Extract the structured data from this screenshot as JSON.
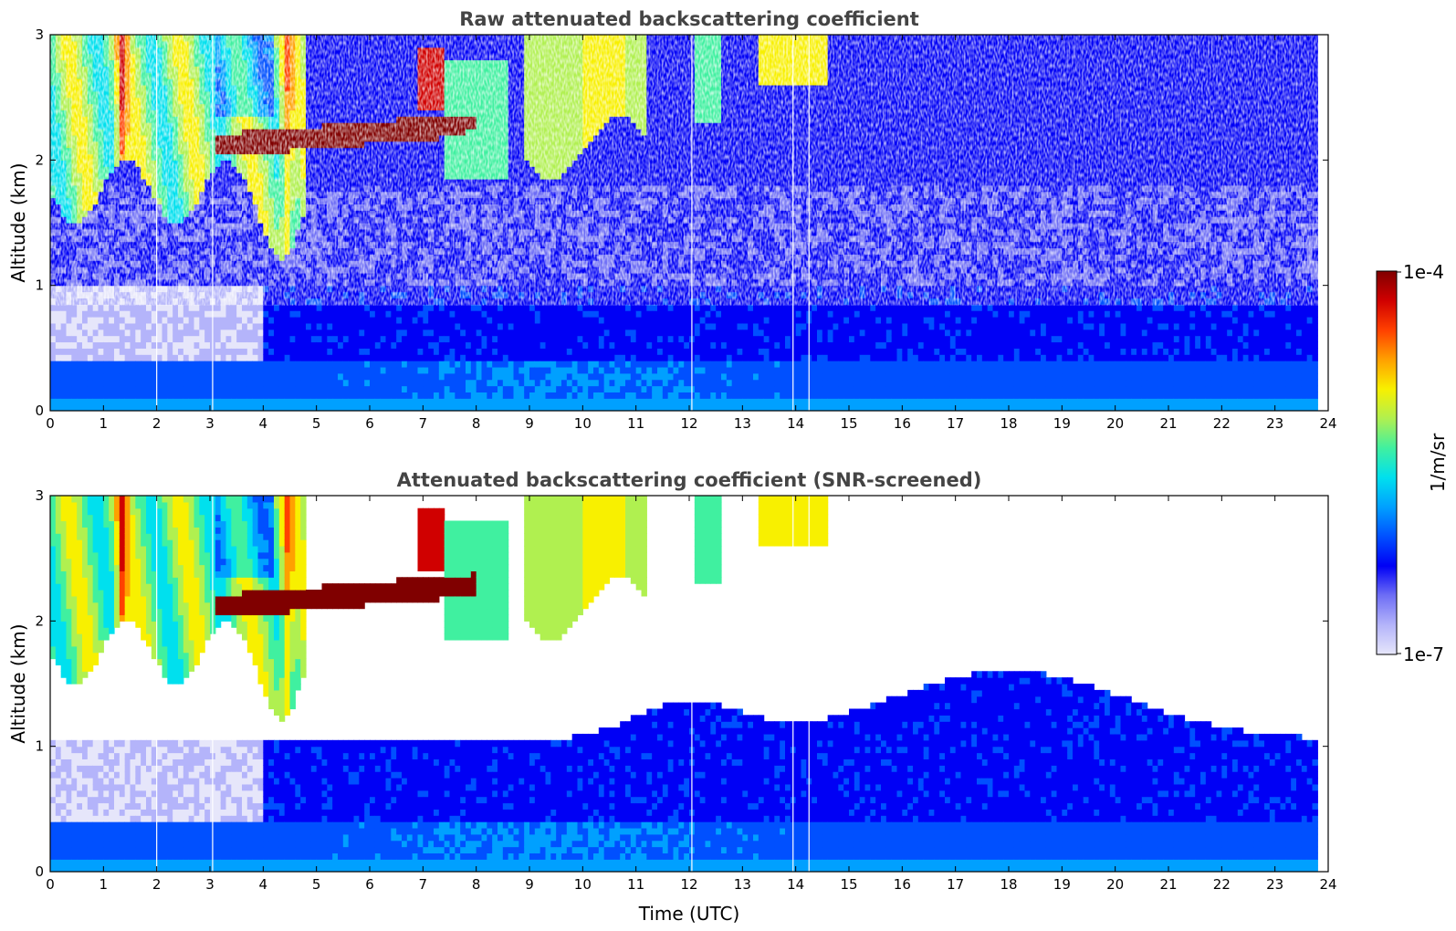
{
  "colormap": [
    "#e6e6fa",
    "#b4b4fa",
    "#6e6ef5",
    "#0000f5",
    "#0050ff",
    "#00a0ff",
    "#00e0ee",
    "#40f0a0",
    "#b0f050",
    "#f8f000",
    "#ffa000",
    "#ff4000",
    "#d00000",
    "#800000"
  ],
  "chart_data": [
    {
      "type": "heatmap",
      "title": "Raw attenuated backscattering coefficient",
      "xlabel": "",
      "ylabel": "Altitude (km)",
      "xlim": [
        0,
        24
      ],
      "ylim": [
        0,
        3
      ],
      "xticks": [
        "0",
        "1",
        "2",
        "3",
        "4",
        "5",
        "6",
        "7",
        "8",
        "9",
        "10",
        "11",
        "12",
        "13",
        "14",
        "15",
        "16",
        "17",
        "18",
        "19",
        "20",
        "21",
        "22",
        "23",
        "24"
      ],
      "yticks": [
        "0",
        "1",
        "2",
        "3"
      ],
      "screened": false,
      "features": [
        {
          "name": "near-surface layer",
          "x": [
            0,
            23.8
          ],
          "y": [
            0,
            0.4
          ],
          "level": 4.0
        },
        {
          "name": "clear-air aerosol",
          "x": [
            0,
            23.8
          ],
          "y": [
            0.4,
            1.0
          ],
          "level": 3.2
        },
        {
          "name": "cirrus streaks",
          "x": [
            0,
            4.8
          ],
          "y": [
            1.7,
            3.0
          ],
          "level": 8.5
        },
        {
          "name": "dense layer",
          "x": [
            3.1,
            7.0
          ],
          "y": [
            2.05,
            2.3
          ],
          "level": 12.5
        },
        {
          "name": "cloud 9-11 UTC",
          "x": [
            8.9,
            11.2
          ],
          "y": [
            2.1,
            3.0
          ],
          "level": 8.0
        },
        {
          "name": "cloud 13.5 UTC",
          "x": [
            13.3,
            14.6
          ],
          "y": [
            2.6,
            3.0
          ],
          "level": 8.5
        }
      ]
    },
    {
      "type": "heatmap",
      "title": "Attenuated backscattering coefficient (SNR-screened)",
      "xlabel": "Time (UTC)",
      "ylabel": "Altitude (km)",
      "xlim": [
        0,
        24
      ],
      "ylim": [
        0,
        3
      ],
      "xticks": [
        "0",
        "1",
        "2",
        "3",
        "4",
        "5",
        "6",
        "7",
        "8",
        "9",
        "10",
        "11",
        "12",
        "13",
        "14",
        "15",
        "16",
        "17",
        "18",
        "19",
        "20",
        "21",
        "22",
        "23",
        "24"
      ],
      "yticks": [
        "0",
        "1",
        "2",
        "3"
      ],
      "screened": true,
      "features": [
        {
          "name": "near-surface layer",
          "x": [
            0,
            23.8
          ],
          "y": [
            0,
            0.4
          ],
          "level": 4.0
        },
        {
          "name": "boundary layer",
          "x": [
            0,
            23.8
          ],
          "y": [
            0.4,
            1.8
          ],
          "level": 3.0
        },
        {
          "name": "cirrus streaks",
          "x": [
            0,
            4.8
          ],
          "y": [
            1.7,
            3.0
          ],
          "level": 8.5
        },
        {
          "name": "dense layer",
          "x": [
            3.1,
            8.0
          ],
          "y": [
            2.05,
            2.3
          ],
          "level": 13.5
        },
        {
          "name": "cloud 9-11 UTC",
          "x": [
            8.9,
            11.2
          ],
          "y": [
            2.1,
            3.0
          ],
          "level": 8.0
        },
        {
          "name": "cloud 13.5 UTC",
          "x": [
            13.3,
            14.6
          ],
          "y": [
            2.6,
            3.0
          ],
          "level": 8.5
        }
      ]
    }
  ],
  "colorbar": {
    "label": "1/m/sr",
    "min_label": "1e-7",
    "max_label": "1e-4",
    "scale": "log"
  }
}
